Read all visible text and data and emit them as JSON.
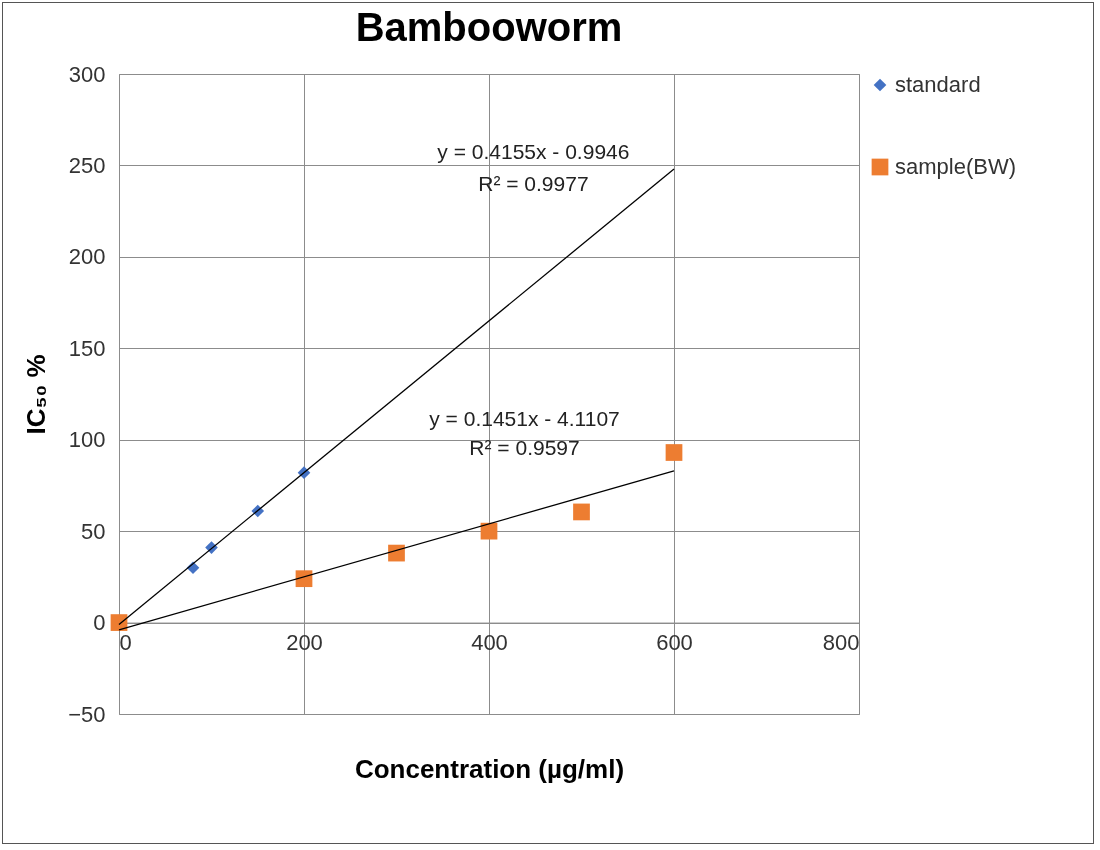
{
  "chart_data": {
    "type": "scatter",
    "title": "Bambooworm",
    "xlabel": "Concentration (µg/ml)",
    "ylabel": "IC₅₀ %",
    "xlim": [
      0,
      800
    ],
    "xticks": [
      0,
      200,
      400,
      600,
      800
    ],
    "ylim": [
      -50,
      300
    ],
    "yticks": [
      -50,
      0,
      50,
      100,
      150,
      200,
      250,
      300
    ],
    "grid": true,
    "legend": "right",
    "series": [
      {
        "name": "standard",
        "color": "#4472c4",
        "marker": "diamond",
        "x": [
          80,
          100,
          150,
          200
        ],
        "values": [
          30,
          41,
          61,
          82
        ]
      },
      {
        "name": "sample(BW)",
        "color": "#ed7d31",
        "marker": "square",
        "x": [
          0,
          200,
          300,
          400,
          500,
          600
        ],
        "values": [
          0,
          24,
          38,
          50,
          60.5,
          93
        ]
      },
      {
        "type": "line",
        "color": "#000000",
        "x": [
          0,
          600
        ],
        "values": [
          -1,
          248
        ]
      },
      {
        "type": "line",
        "color": "#000000",
        "x": [
          0,
          600
        ],
        "values": [
          -4,
          83
        ]
      }
    ],
    "annotations": [
      "y = 0.4155x - 0.9946",
      "R² = 0.9977",
      "y = 0.1451x - 4.1107",
      "R² = 0.9597"
    ]
  }
}
